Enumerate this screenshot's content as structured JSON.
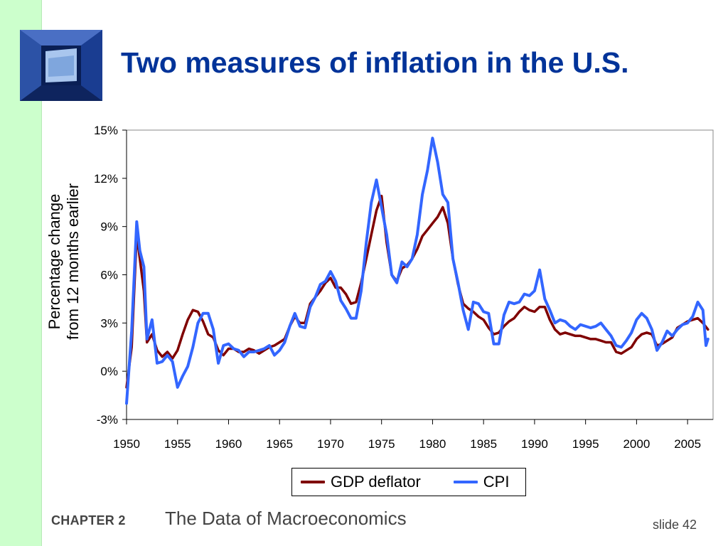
{
  "slide": {
    "title": "Two measures of inflation in the U.S.",
    "footer_chapter": "CHAPTER 2",
    "footer_subject": "The Data of Macroeconomics",
    "footer_slide": "slide 42",
    "colors": {
      "title": "#003399",
      "left_band": "#ccffcc",
      "footer_text": "#444444"
    },
    "logo_icon": "window-shaft-icon"
  },
  "chart_data": {
    "type": "line",
    "title": "",
    "xlabel": "",
    "ylabel_lines": [
      "Percentage change",
      "from 12 months earlier"
    ],
    "xlim": [
      1950,
      2007.5
    ],
    "ylim": [
      -3,
      15
    ],
    "x_ticks": [
      1950,
      1955,
      1960,
      1965,
      1970,
      1975,
      1980,
      1985,
      1990,
      1995,
      2000,
      2005
    ],
    "x_tick_labels": [
      "1950",
      "1955",
      "1960",
      "1965",
      "1970",
      "1975",
      "1980",
      "1985",
      "1990",
      "1995",
      "2000",
      "2005"
    ],
    "y_ticks": [
      -3,
      0,
      3,
      6,
      9,
      12,
      15
    ],
    "y_tick_labels": [
      "-3%",
      "0%",
      "3%",
      "6%",
      "9%",
      "12%",
      "15%"
    ],
    "grid": false,
    "legend_position": "bottom-center",
    "series": [
      {
        "name": "GDP deflator",
        "color": "#7f0000",
        "points": [
          [
            1950,
            -1.0
          ],
          [
            1950.5,
            1.5
          ],
          [
            1951,
            8.5
          ],
          [
            1951.3,
            7.0
          ],
          [
            1951.7,
            5.0
          ],
          [
            1952,
            1.8
          ],
          [
            1952.5,
            2.3
          ],
          [
            1953,
            1.3
          ],
          [
            1953.5,
            0.9
          ],
          [
            1954,
            1.2
          ],
          [
            1954.5,
            0.8
          ],
          [
            1955,
            1.3
          ],
          [
            1955.5,
            2.3
          ],
          [
            1956,
            3.2
          ],
          [
            1956.5,
            3.8
          ],
          [
            1957,
            3.7
          ],
          [
            1957.5,
            3.1
          ],
          [
            1958,
            2.3
          ],
          [
            1958.5,
            2.1
          ],
          [
            1959,
            1.3
          ],
          [
            1959.5,
            1.0
          ],
          [
            1960,
            1.4
          ],
          [
            1960.5,
            1.4
          ],
          [
            1961,
            1.2
          ],
          [
            1961.5,
            1.2
          ],
          [
            1962,
            1.4
          ],
          [
            1962.5,
            1.3
          ],
          [
            1963,
            1.1
          ],
          [
            1963.5,
            1.3
          ],
          [
            1964,
            1.5
          ],
          [
            1964.5,
            1.6
          ],
          [
            1965,
            1.8
          ],
          [
            1965.5,
            2.0
          ],
          [
            1966,
            2.8
          ],
          [
            1966.5,
            3.4
          ],
          [
            1967,
            3.0
          ],
          [
            1967.5,
            3.0
          ],
          [
            1968,
            4.2
          ],
          [
            1968.5,
            4.6
          ],
          [
            1969,
            5.0
          ],
          [
            1969.5,
            5.5
          ],
          [
            1970,
            5.8
          ],
          [
            1970.5,
            5.2
          ],
          [
            1971,
            5.2
          ],
          [
            1971.5,
            4.8
          ],
          [
            1972,
            4.2
          ],
          [
            1972.5,
            4.3
          ],
          [
            1973,
            5.5
          ],
          [
            1973.5,
            7.0
          ],
          [
            1974,
            8.5
          ],
          [
            1974.5,
            10.0
          ],
          [
            1975,
            10.9
          ],
          [
            1975.5,
            8.0
          ],
          [
            1976,
            6.0
          ],
          [
            1976.5,
            5.6
          ],
          [
            1977,
            6.4
          ],
          [
            1977.5,
            6.6
          ],
          [
            1978,
            7.0
          ],
          [
            1978.5,
            7.6
          ],
          [
            1979,
            8.4
          ],
          [
            1979.5,
            8.8
          ],
          [
            1980,
            9.2
          ],
          [
            1980.5,
            9.6
          ],
          [
            1981,
            10.2
          ],
          [
            1981.5,
            9.2
          ],
          [
            1982,
            7.0
          ],
          [
            1982.5,
            5.4
          ],
          [
            1983,
            4.2
          ],
          [
            1983.5,
            3.9
          ],
          [
            1984,
            3.7
          ],
          [
            1984.5,
            3.4
          ],
          [
            1985,
            3.2
          ],
          [
            1985.5,
            2.7
          ],
          [
            1986,
            2.3
          ],
          [
            1986.5,
            2.4
          ],
          [
            1987,
            2.8
          ],
          [
            1987.5,
            3.1
          ],
          [
            1988,
            3.3
          ],
          [
            1988.5,
            3.7
          ],
          [
            1989,
            4.0
          ],
          [
            1989.5,
            3.8
          ],
          [
            1990,
            3.7
          ],
          [
            1990.5,
            4.0
          ],
          [
            1991,
            4.0
          ],
          [
            1991.5,
            3.2
          ],
          [
            1992,
            2.6
          ],
          [
            1992.5,
            2.3
          ],
          [
            1993,
            2.4
          ],
          [
            1993.5,
            2.3
          ],
          [
            1994,
            2.2
          ],
          [
            1994.5,
            2.2
          ],
          [
            1995,
            2.1
          ],
          [
            1995.5,
            2.0
          ],
          [
            1996,
            2.0
          ],
          [
            1996.5,
            1.9
          ],
          [
            1997,
            1.8
          ],
          [
            1997.5,
            1.8
          ],
          [
            1998,
            1.2
          ],
          [
            1998.5,
            1.1
          ],
          [
            1999,
            1.3
          ],
          [
            1999.5,
            1.5
          ],
          [
            2000,
            2.0
          ],
          [
            2000.5,
            2.3
          ],
          [
            2001,
            2.4
          ],
          [
            2001.5,
            2.3
          ],
          [
            2002,
            1.6
          ],
          [
            2002.5,
            1.7
          ],
          [
            2003,
            1.9
          ],
          [
            2003.5,
            2.1
          ],
          [
            2004,
            2.7
          ],
          [
            2004.5,
            2.9
          ],
          [
            2005,
            3.1
          ],
          [
            2005.5,
            3.2
          ],
          [
            2006,
            3.3
          ],
          [
            2006.5,
            3.0
          ],
          [
            2007,
            2.6
          ]
        ]
      },
      {
        "name": "CPI",
        "color": "#3366ff",
        "points": [
          [
            1950,
            -2.0
          ],
          [
            1950.5,
            2.5
          ],
          [
            1951,
            9.3
          ],
          [
            1951.3,
            7.5
          ],
          [
            1951.7,
            6.5
          ],
          [
            1952,
            2.0
          ],
          [
            1952.5,
            3.2
          ],
          [
            1953,
            0.5
          ],
          [
            1953.5,
            0.6
          ],
          [
            1954,
            1.0
          ],
          [
            1954.5,
            0.6
          ],
          [
            1955,
            -1.0
          ],
          [
            1955.5,
            -0.3
          ],
          [
            1956,
            0.3
          ],
          [
            1956.5,
            1.5
          ],
          [
            1957,
            3.0
          ],
          [
            1957.5,
            3.6
          ],
          [
            1958,
            3.6
          ],
          [
            1958.5,
            2.6
          ],
          [
            1959,
            0.5
          ],
          [
            1959.5,
            1.6
          ],
          [
            1960,
            1.7
          ],
          [
            1960.5,
            1.4
          ],
          [
            1961,
            1.3
          ],
          [
            1961.5,
            0.9
          ],
          [
            1962,
            1.2
          ],
          [
            1962.5,
            1.2
          ],
          [
            1963,
            1.3
          ],
          [
            1963.5,
            1.4
          ],
          [
            1964,
            1.6
          ],
          [
            1964.5,
            1.0
          ],
          [
            1965,
            1.3
          ],
          [
            1965.5,
            1.8
          ],
          [
            1966,
            2.8
          ],
          [
            1966.5,
            3.6
          ],
          [
            1967,
            2.8
          ],
          [
            1967.5,
            2.7
          ],
          [
            1968,
            4.0
          ],
          [
            1968.5,
            4.6
          ],
          [
            1969,
            5.4
          ],
          [
            1969.5,
            5.6
          ],
          [
            1970,
            6.2
          ],
          [
            1970.5,
            5.6
          ],
          [
            1971,
            4.4
          ],
          [
            1971.5,
            3.9
          ],
          [
            1972,
            3.3
          ],
          [
            1972.5,
            3.3
          ],
          [
            1973,
            5.0
          ],
          [
            1973.5,
            8.0
          ],
          [
            1974,
            10.5
          ],
          [
            1974.5,
            11.9
          ],
          [
            1975,
            10.2
          ],
          [
            1975.5,
            8.5
          ],
          [
            1976,
            6.0
          ],
          [
            1976.5,
            5.5
          ],
          [
            1977,
            6.8
          ],
          [
            1977.5,
            6.5
          ],
          [
            1978,
            7.0
          ],
          [
            1978.5,
            8.5
          ],
          [
            1979,
            11.0
          ],
          [
            1979.5,
            12.5
          ],
          [
            1980,
            14.5
          ],
          [
            1980.5,
            13.0
          ],
          [
            1981,
            11.0
          ],
          [
            1981.5,
            10.5
          ],
          [
            1982,
            7.0
          ],
          [
            1982.5,
            5.5
          ],
          [
            1983,
            3.8
          ],
          [
            1983.5,
            2.6
          ],
          [
            1984,
            4.3
          ],
          [
            1984.5,
            4.2
          ],
          [
            1985,
            3.7
          ],
          [
            1985.5,
            3.6
          ],
          [
            1986,
            1.7
          ],
          [
            1986.5,
            1.7
          ],
          [
            1987,
            3.5
          ],
          [
            1987.5,
            4.3
          ],
          [
            1988,
            4.2
          ],
          [
            1988.5,
            4.3
          ],
          [
            1989,
            4.8
          ],
          [
            1989.5,
            4.7
          ],
          [
            1990,
            5.0
          ],
          [
            1990.5,
            6.3
          ],
          [
            1991,
            4.5
          ],
          [
            1991.5,
            3.8
          ],
          [
            1992,
            3.0
          ],
          [
            1992.5,
            3.2
          ],
          [
            1993,
            3.1
          ],
          [
            1993.5,
            2.8
          ],
          [
            1994,
            2.6
          ],
          [
            1994.5,
            2.9
          ],
          [
            1995,
            2.8
          ],
          [
            1995.5,
            2.7
          ],
          [
            1996,
            2.8
          ],
          [
            1996.5,
            3.0
          ],
          [
            1997,
            2.6
          ],
          [
            1997.5,
            2.2
          ],
          [
            1998,
            1.6
          ],
          [
            1998.5,
            1.5
          ],
          [
            1999,
            1.9
          ],
          [
            1999.5,
            2.4
          ],
          [
            2000,
            3.2
          ],
          [
            2000.5,
            3.6
          ],
          [
            2001,
            3.3
          ],
          [
            2001.5,
            2.6
          ],
          [
            2002,
            1.3
          ],
          [
            2002.5,
            1.8
          ],
          [
            2003,
            2.5
          ],
          [
            2003.5,
            2.2
          ],
          [
            2004,
            2.6
          ],
          [
            2004.5,
            2.9
          ],
          [
            2005,
            3.0
          ],
          [
            2005.5,
            3.4
          ],
          [
            2006,
            4.3
          ],
          [
            2006.5,
            3.8
          ],
          [
            2006.8,
            1.6
          ],
          [
            2007,
            2.0
          ]
        ]
      }
    ]
  }
}
